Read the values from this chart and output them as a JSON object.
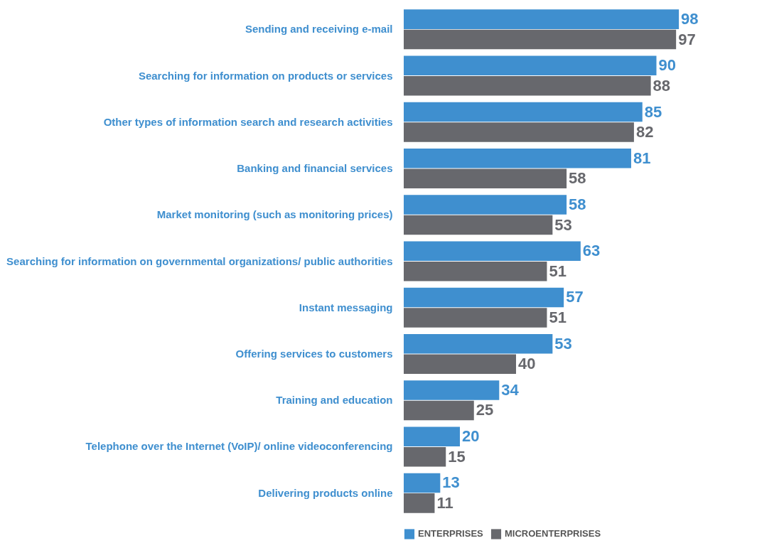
{
  "chart_data": {
    "type": "bar",
    "orientation": "horizontal",
    "categories": [
      "Sending and receiving e-mail",
      "Searching for information on products or services",
      "Other types of information search and research activities",
      "Banking and financial services",
      "Market monitoring (such as monitoring prices)",
      "Searching for information on governmental organizations/ public authorities",
      "Instant messaging",
      "Offering services to customers",
      "Training and education",
      "Telephone over the Internet (VoIP)/ online videoconferencing",
      "Delivering products online"
    ],
    "series": [
      {
        "name": "ENTERPRISES",
        "color": "#3f8fcf",
        "values": [
          98,
          90,
          85,
          81,
          58,
          63,
          57,
          53,
          34,
          20,
          13
        ]
      },
      {
        "name": "MICROENTERPRISES",
        "color": "#67686d",
        "values": [
          97,
          88,
          82,
          58,
          53,
          51,
          51,
          40,
          25,
          15,
          11
        ]
      }
    ],
    "data_labels": true,
    "legend": "bottom"
  }
}
